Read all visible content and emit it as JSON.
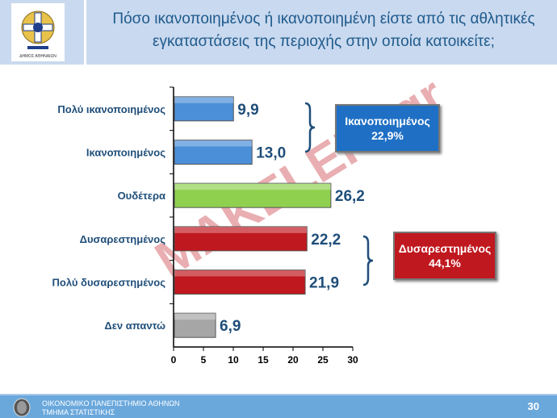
{
  "header": {
    "title_line1": "Πόσο ικανοποιημένος ή ικανοποιημένη είστε από τις αθλητικές",
    "title_line2": "εγκαταστάσεις της περιοχής  στην οποία κατοικείτε;",
    "logo_text": "ΔΗΜΟΣ ΑΘΗΝΑΙΩΝ"
  },
  "footer": {
    "line1": "ΟΙΚΟΝΟΜΙΚΟ ΠΑΝΕΠΙΣΤΗΜΙΟ ΑΘΗΝΩΝ",
    "line2": "ΤΜΗΜΑ ΣΤΑΤΙΣΤΙΚΗΣ",
    "page": "30"
  },
  "watermark": "MAKELEIO.gr",
  "summary": {
    "satisfied_label": "Ικανοποιημένος",
    "satisfied_value": "22,9%",
    "dissatisfied_label": "Δυσαρεστημένος",
    "dissatisfied_value": "44,1%"
  },
  "chart_data": {
    "type": "bar",
    "orientation": "horizontal",
    "categories": [
      "Πολύ ικανοποιημένος",
      "Ικανοποιημένος",
      "Ουδέτερα",
      "Δυσαρεστημένος",
      "Πολύ δυσαρεστημένος",
      "Δεν απαντώ"
    ],
    "values": [
      9.9,
      13.0,
      26.2,
      22.2,
      21.9,
      6.9
    ],
    "labels": [
      "9,9",
      "13,0",
      "26,2",
      "22,2",
      "21,9",
      "6,9"
    ],
    "colors": [
      "#4a8fd8",
      "#4a8fd8",
      "#8fd14f",
      "#c0181f",
      "#c0181f",
      "#a6a6a6"
    ],
    "xlim": [
      0,
      30
    ],
    "ticks": [
      0,
      5,
      10,
      15,
      20,
      25,
      30
    ],
    "title": "",
    "xlabel": "",
    "ylabel": ""
  }
}
